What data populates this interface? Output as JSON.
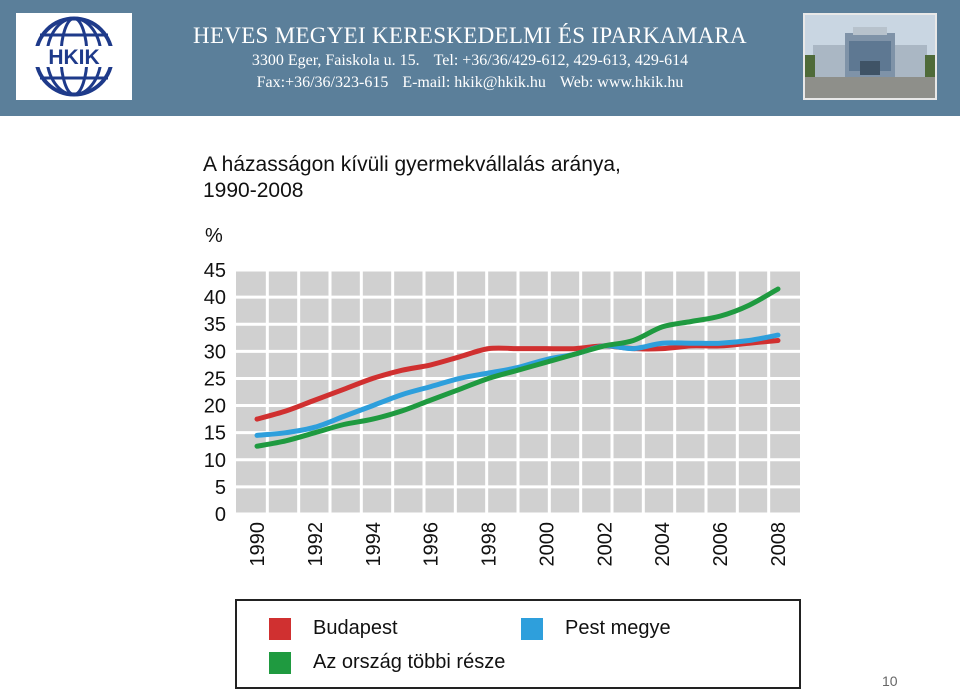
{
  "header": {
    "logo_text": "HKIK",
    "org_name": "HEVES MEGYEI KERESKEDELMI ÉS IPARKAMARA",
    "address": "3300 Eger, Faiskola u. 15.",
    "tel": "Tel: +36/36/429-612, 429-613, 429-614",
    "fax": "Fax:+36/36/323-615",
    "email": "E-mail: hkik@hkik.hu",
    "web": "Web: www.hkik.hu"
  },
  "page_number": "10",
  "colors": {
    "header_bg": "#5b7f9a",
    "plot_bg": "#d0d0d0",
    "budapest": "#d03030",
    "pest": "#2e9fdc",
    "other": "#1f9a40"
  },
  "chart_data": {
    "type": "line",
    "title_line1": "A házasságon kívüli gyermekvállalás aránya,",
    "title_line2": "1990-2008",
    "ylabel": "%",
    "xlabel": "",
    "ylim": [
      0,
      45
    ],
    "y_ticks": [
      "0",
      "5",
      "10",
      "15",
      "20",
      "25",
      "30",
      "35",
      "40",
      "45"
    ],
    "x_ticks": [
      "1990",
      "1992",
      "1994",
      "1996",
      "1998",
      "2000",
      "2002",
      "2004",
      "2006",
      "2008"
    ],
    "grid": true,
    "legend_position": "bottom",
    "x": [
      1990,
      1991,
      1992,
      1993,
      1994,
      1995,
      1996,
      1997,
      1998,
      1999,
      2000,
      2001,
      2002,
      2003,
      2004,
      2005,
      2006,
      2007,
      2008
    ],
    "series": [
      {
        "name": "Budapest",
        "color": "#d03030",
        "values": [
          17.5,
          19,
          21,
          23,
          25,
          26.5,
          27.5,
          29,
          30.5,
          30.5,
          30.5,
          30.5,
          31,
          30.5,
          30.5,
          31,
          31,
          31.5,
          32
        ]
      },
      {
        "name": "Pest megye",
        "color": "#2e9fdc",
        "values": [
          14.5,
          15,
          16,
          18,
          20,
          22,
          23.5,
          25,
          26,
          27,
          28.5,
          29.5,
          31,
          30.5,
          31.5,
          31.5,
          31.5,
          32,
          33
        ]
      },
      {
        "name": "Az ország többi része",
        "color": "#1f9a40",
        "values": [
          12.5,
          13.5,
          15,
          16.5,
          17.5,
          19,
          21,
          23,
          25,
          26.5,
          28,
          29.5,
          31,
          32,
          34.5,
          35.5,
          36.5,
          38.5,
          41.5
        ]
      }
    ]
  }
}
